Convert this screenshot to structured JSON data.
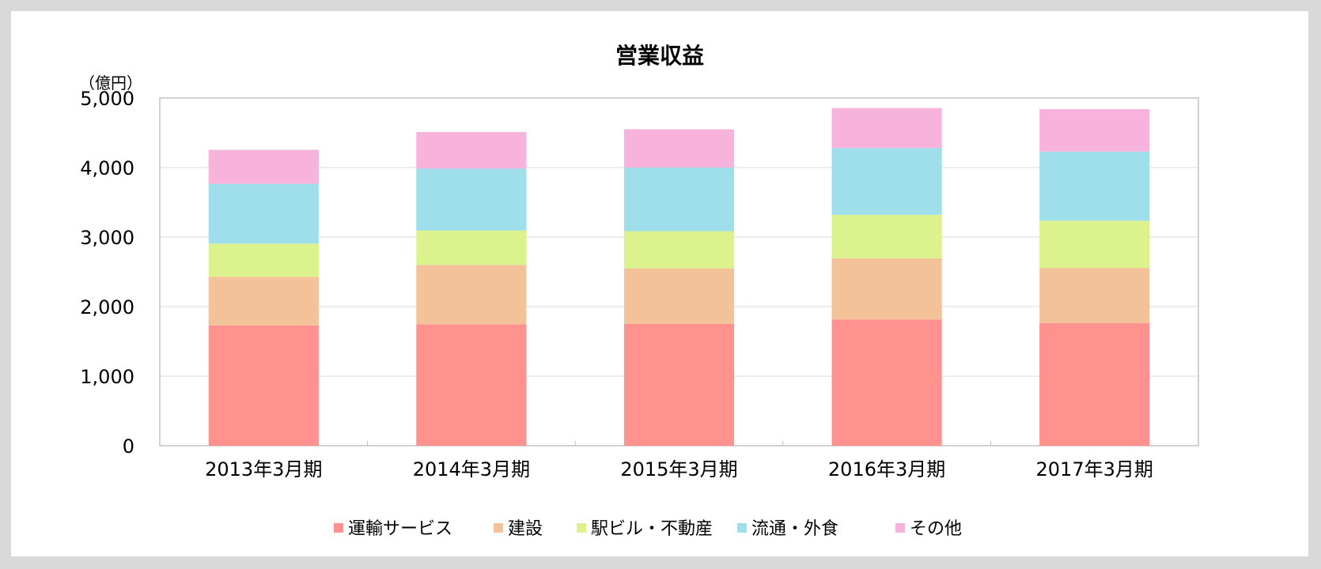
{
  "chart_data": {
    "type": "bar",
    "stacked": true,
    "title": "営業収益",
    "ylabel": "（億円）",
    "xlabel": "",
    "ylim": [
      0,
      5000
    ],
    "yticks": [
      0,
      1000,
      2000,
      3000,
      4000,
      5000
    ],
    "ytick_labels": [
      "0",
      "1,000",
      "2,000",
      "3,000",
      "4,000",
      "5,000"
    ],
    "categories": [
      "2013年3月期",
      "2014年3月期",
      "2015年3月期",
      "2016年3月期",
      "2017年3月期"
    ],
    "grid": true,
    "legend_position": "bottom",
    "series": [
      {
        "name": "運輸サービス",
        "color": "#ff918e",
        "values": [
          1730,
          1745,
          1750,
          1815,
          1765
        ]
      },
      {
        "name": "建設",
        "color": "#f3c298",
        "values": [
          700,
          855,
          800,
          880,
          790
        ]
      },
      {
        "name": "駅ビル・不動産",
        "color": "#dcf28d",
        "values": [
          475,
          495,
          535,
          625,
          680
        ]
      },
      {
        "name": "流通・外食",
        "color": "#9fdfec",
        "values": [
          860,
          890,
          915,
          960,
          995
        ]
      },
      {
        "name": "その他",
        "color": "#f7b3dc",
        "values": [
          490,
          525,
          550,
          575,
          610
        ]
      }
    ]
  }
}
